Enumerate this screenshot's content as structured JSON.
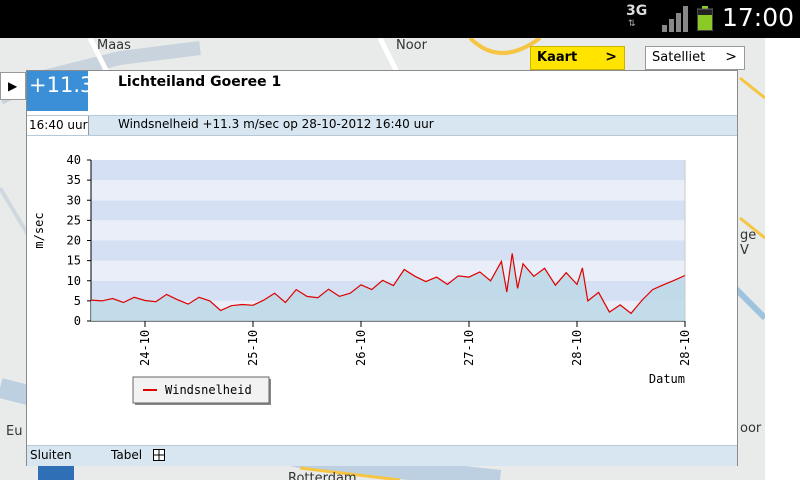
{
  "status_bar": {
    "network": "3G",
    "time": "17:00"
  },
  "map": {
    "labels": [
      "Maas",
      "Noor",
      "Eu",
      "Rotterdam",
      "ge V",
      "oor"
    ],
    "kaart_label": "Kaart",
    "satelliet_label": "Satelliet"
  },
  "station": {
    "value": "+11.3",
    "name": "Lichteiland Goeree 1",
    "time": "16:40 uur",
    "description": "Windsnelheid +11.3 m/sec op 28-10-2012 16:40 uur"
  },
  "footer": {
    "close_label": "Sluiten",
    "table_label": "Tabel"
  },
  "chart_data": {
    "type": "area",
    "ylabel": "m/sec",
    "xlabel": "Datum",
    "ylim": [
      0,
      40
    ],
    "yticks": [
      "0",
      "5",
      "10",
      "15",
      "20",
      "25",
      "30",
      "35",
      "40"
    ],
    "xlim": [
      23.5,
      29.0
    ],
    "xticks": [
      {
        "label": "24-10",
        "pos": 24
      },
      {
        "label": "25-10",
        "pos": 25
      },
      {
        "label": "26-10",
        "pos": 26
      },
      {
        "label": "27-10",
        "pos": 27
      },
      {
        "label": "28-10",
        "pos": 28
      },
      {
        "label": "28-10",
        "pos": 29
      }
    ],
    "grid": true,
    "legend_position": "bottom-left",
    "series": [
      {
        "name": "Windsnelheid",
        "color": "#e00000",
        "points": [
          [
            23.5,
            5.2
          ],
          [
            23.6,
            5.0
          ],
          [
            23.7,
            5.6
          ],
          [
            23.8,
            4.6
          ],
          [
            23.9,
            5.9
          ],
          [
            24.0,
            5.1
          ],
          [
            24.1,
            4.8
          ],
          [
            24.2,
            6.6
          ],
          [
            24.3,
            5.3
          ],
          [
            24.4,
            4.2
          ],
          [
            24.5,
            5.9
          ],
          [
            24.6,
            5.0
          ],
          [
            24.7,
            2.6
          ],
          [
            24.8,
            3.8
          ],
          [
            24.9,
            4.1
          ],
          [
            25.0,
            3.9
          ],
          [
            25.1,
            5.2
          ],
          [
            25.2,
            6.9
          ],
          [
            25.3,
            4.6
          ],
          [
            25.4,
            7.8
          ],
          [
            25.5,
            6.1
          ],
          [
            25.6,
            5.8
          ],
          [
            25.7,
            7.9
          ],
          [
            25.8,
            6.1
          ],
          [
            25.9,
            6.9
          ],
          [
            26.0,
            9.0
          ],
          [
            26.1,
            7.8
          ],
          [
            26.2,
            10.1
          ],
          [
            26.3,
            8.8
          ],
          [
            26.4,
            12.8
          ],
          [
            26.5,
            11.1
          ],
          [
            26.6,
            9.8
          ],
          [
            26.7,
            10.9
          ],
          [
            26.8,
            9.1
          ],
          [
            26.9,
            11.2
          ],
          [
            27.0,
            10.9
          ],
          [
            27.1,
            12.2
          ],
          [
            27.2,
            10.0
          ],
          [
            27.3,
            14.8
          ],
          [
            27.35,
            7.2
          ],
          [
            27.4,
            16.8
          ],
          [
            27.45,
            8.1
          ],
          [
            27.5,
            14.2
          ],
          [
            27.6,
            11.1
          ],
          [
            27.7,
            13.1
          ],
          [
            27.8,
            8.9
          ],
          [
            27.9,
            12.0
          ],
          [
            28.0,
            9.1
          ],
          [
            28.05,
            13.2
          ],
          [
            28.1,
            5.0
          ],
          [
            28.2,
            7.1
          ],
          [
            28.3,
            2.2
          ],
          [
            28.4,
            4.0
          ],
          [
            28.5,
            1.9
          ],
          [
            28.6,
            5.1
          ],
          [
            28.7,
            7.8
          ],
          [
            28.8,
            9.0
          ],
          [
            28.9,
            10.1
          ],
          [
            29.0,
            11.3
          ]
        ]
      }
    ]
  }
}
